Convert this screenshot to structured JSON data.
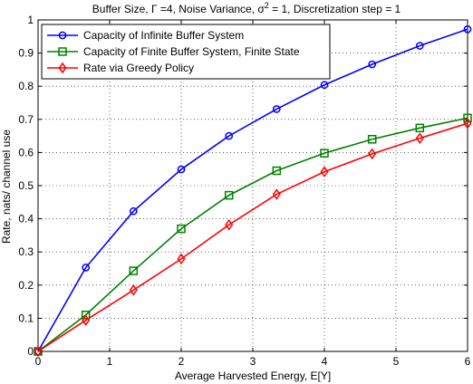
{
  "chart_data": {
    "type": "line",
    "title_prefix": "Buffer Size, ",
    "title_gamma": "Γ",
    "title_mid": " =4, Noise Variance, ",
    "title_sigma": "σ",
    "title_sup": "2",
    "title_suffix": " = 1, Discretization step = 1",
    "xlabel": "Average Harvested Energy, E[Y]",
    "ylabel": "Rate, nats/ channel use",
    "xlim": [
      0,
      6
    ],
    "ylim": [
      0,
      1
    ],
    "xticks": [
      "0",
      "1",
      "2",
      "3",
      "4",
      "5",
      "6"
    ],
    "yticks": [
      "0",
      "0.1",
      "0.2",
      "0.3",
      "0.4",
      "0.5",
      "0.6",
      "0.7",
      "0.8",
      "0.9",
      "1"
    ],
    "grid": true,
    "legend_position": "top-left",
    "series": [
      {
        "name": "Capacity of Infinite Buffer System",
        "color": "#0000ff",
        "marker": "circle",
        "x": [
          0,
          0.667,
          1.333,
          2,
          2.667,
          3.333,
          4,
          4.667,
          5.333,
          6
        ],
        "values": [
          0,
          0.253,
          0.423,
          0.549,
          0.65,
          0.731,
          0.804,
          0.866,
          0.922,
          0.972
        ]
      },
      {
        "name": "Capacity of Finite Buffer System, Finite State",
        "color": "#008000",
        "marker": "square",
        "x": [
          0,
          0.667,
          1.333,
          2,
          2.667,
          3.333,
          4,
          4.667,
          5.333,
          6
        ],
        "values": [
          0,
          0.11,
          0.243,
          0.37,
          0.471,
          0.545,
          0.598,
          0.64,
          0.674,
          0.704
        ]
      },
      {
        "name": "Rate via Greedy Policy",
        "color": "#ff0000",
        "marker": "diamond",
        "x": [
          0,
          0.667,
          1.333,
          2,
          2.667,
          3.333,
          4,
          4.667,
          5.333,
          6
        ],
        "values": [
          0,
          0.094,
          0.185,
          0.279,
          0.382,
          0.474,
          0.542,
          0.596,
          0.643,
          0.688
        ]
      }
    ]
  }
}
